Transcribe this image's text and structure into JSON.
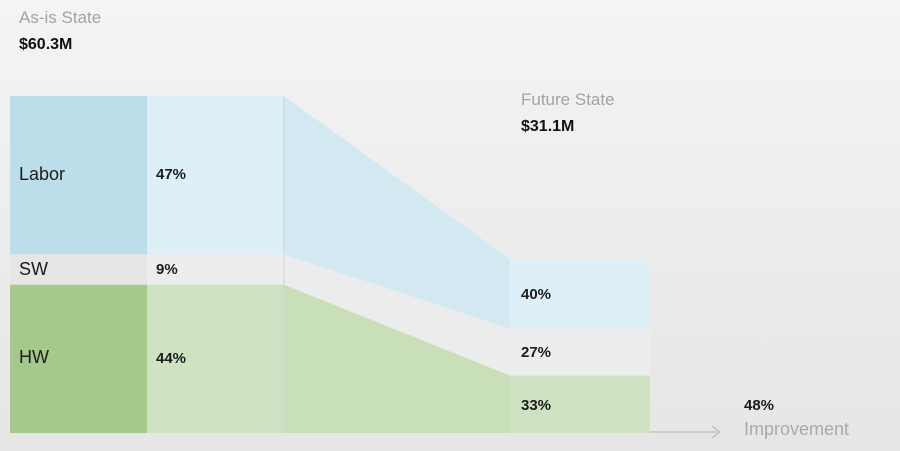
{
  "as_is": {
    "title": "As-is State",
    "total": "$60.3M"
  },
  "future": {
    "title": "Future State",
    "total": "$31.1M"
  },
  "improvement": {
    "value": "48%",
    "label": "Improvement"
  },
  "colors": {
    "labor_dark": "#bcdeeb",
    "labor_light": "#ddeff7",
    "sw_dark": "#e6e6e6",
    "sw_light": "#ededed",
    "hw_dark": "#a4c98a",
    "hw_light": "#cfe3c2",
    "transition_labor": "#d3e9f2",
    "transition_sw": "#ececec",
    "transition_hw": "#c8dfb9"
  },
  "chart_data": {
    "type": "bar",
    "title": "",
    "categories": [
      "As-is State",
      "Future State"
    ],
    "totals": [
      60.3,
      31.1
    ],
    "series": [
      {
        "name": "Labor",
        "values": [
          47,
          40
        ],
        "labels": [
          "47%",
          "40%"
        ]
      },
      {
        "name": "SW",
        "values": [
          9,
          27
        ],
        "labels": [
          "9%",
          "27%"
        ]
      },
      {
        "name": "HW",
        "values": [
          44,
          33
        ],
        "labels": [
          "44%",
          "33%"
        ]
      }
    ]
  }
}
